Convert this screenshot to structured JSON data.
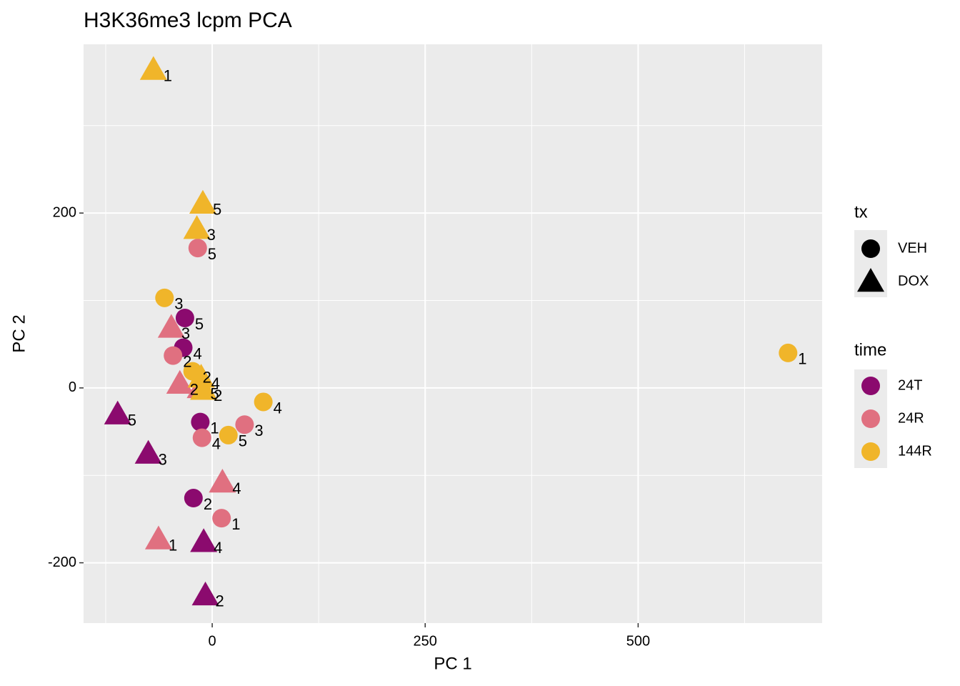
{
  "chart_data": {
    "type": "scatter",
    "title": "H3K36me3 lcpm PCA",
    "xlabel": "PC 1",
    "ylabel": "PC 2",
    "xlim": [
      -151,
      716
    ],
    "ylim": [
      -269,
      393
    ],
    "xticks": [
      0,
      250,
      500
    ],
    "yticks": [
      -200,
      0,
      200
    ],
    "grid": true,
    "shape_legend": {
      "title": "tx",
      "entries": [
        "VEH",
        "DOX"
      ],
      "shapes": [
        "circle",
        "triangle"
      ]
    },
    "color_legend_title": "time",
    "series": [
      {
        "name": "24T",
        "color": "#8b0a6e",
        "x": [
          -32,
          -34,
          -14,
          -22,
          -111,
          -75,
          -10,
          -8
        ],
        "y": [
          80,
          46,
          -39,
          -126,
          -30,
          -75,
          -176,
          -237
        ],
        "labels": [
          "5",
          "4",
          "1",
          "2",
          "5",
          "3",
          "4",
          "2"
        ],
        "tx": [
          "VEH",
          "VEH",
          "VEH",
          "VEH",
          "DOX",
          "DOX",
          "DOX",
          "DOX"
        ]
      },
      {
        "name": "24R",
        "color": "#e07080",
        "x": [
          -17,
          -46,
          38,
          -12,
          11,
          -48,
          -38,
          12,
          -63,
          -14
        ],
        "y": [
          160,
          37,
          -42,
          -57,
          -149,
          69,
          5,
          -108,
          -173,
          0
        ],
        "labels": [
          "5",
          "2",
          "3",
          "4",
          "1",
          "3",
          "2",
          "4",
          "1",
          "5"
        ],
        "tx": [
          "VEH",
          "VEH",
          "VEH",
          "VEH",
          "VEH",
          "DOX",
          "DOX",
          "DOX",
          "DOX",
          "DOX"
        ]
      },
      {
        "name": "144R",
        "color": "#f0b52a",
        "x": [
          -56,
          -23,
          676,
          60,
          19,
          -69,
          -11,
          -18,
          -13,
          -10
        ],
        "y": [
          103,
          19,
          40,
          -16,
          -54,
          364,
          211,
          182,
          12,
          -2
        ],
        "labels": [
          "3",
          "2",
          "1",
          "4",
          "5",
          "1",
          "5",
          "3",
          "4",
          "2"
        ],
        "tx": [
          "VEH",
          "VEH",
          "VEH",
          "VEH",
          "VEH",
          "DOX",
          "DOX",
          "DOX",
          "DOX",
          "DOX"
        ]
      }
    ]
  }
}
